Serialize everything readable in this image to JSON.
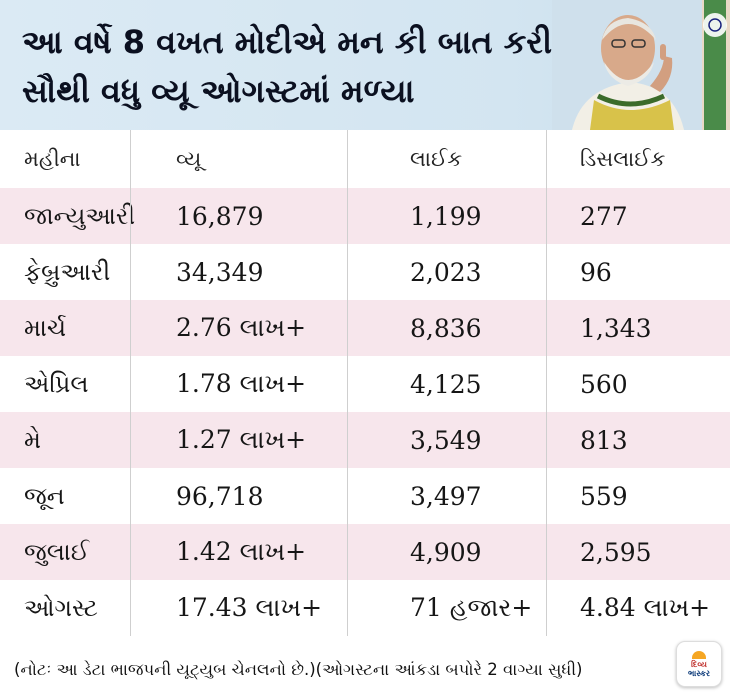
{
  "header": {
    "title_line1": "આ વર્ષે 8 વખત મોદીએ મન કી બાત કરી,",
    "title_line2": "સૌથી વધુ વ્યૂ ઓગસ્ટમાં મળ્યા"
  },
  "table": {
    "columns": [
      "મહીના",
      "વ્યૂ",
      "લાઈક",
      "ડિસલાઈક"
    ],
    "rows": [
      {
        "month": "જાન્યુઆરી",
        "views": "16,879",
        "likes": "1,199",
        "dislikes": "277"
      },
      {
        "month": "ફેબ્રુઆરી",
        "views": "34,349",
        "likes": "2,023",
        "dislikes": "96"
      },
      {
        "month": "માર્ચ",
        "views": "2.76 લાખ+",
        "likes": "8,836",
        "dislikes": "1,343"
      },
      {
        "month": "એપ્રિલ",
        "views": "1.78 લાખ+",
        "likes": "4,125",
        "dislikes": "560"
      },
      {
        "month": "મે",
        "views": "1.27 લાખ+",
        "likes": "3,549",
        "dislikes": "813"
      },
      {
        "month": "જૂન",
        "views": "96,718",
        "likes": "3,497",
        "dislikes": "559"
      },
      {
        "month": "જુલાઈ",
        "views": "1.42 લાખ+",
        "likes": "4,909",
        "dislikes": "2,595"
      },
      {
        "month": "ઓગસ્ટ",
        "views": "17.43 લાખ+",
        "likes": "71 હજાર+",
        "dislikes": "4.84 લાખ+"
      }
    ]
  },
  "footer": {
    "note": "(નોટઃ આ ડેટા ભાજપની યૂટ્યુબ ચેનલનો છે.)(ઓગસ્ટના આંકડા બપોરે 2 વાગ્યા સુધી)"
  },
  "logo": {
    "line1": "દિવ્ય",
    "line2": "ભાસ્કર"
  },
  "colors": {
    "header_bg": "#d3e5f1",
    "alt_row": "#f7e6ec",
    "grid": "#cfcfcf"
  }
}
